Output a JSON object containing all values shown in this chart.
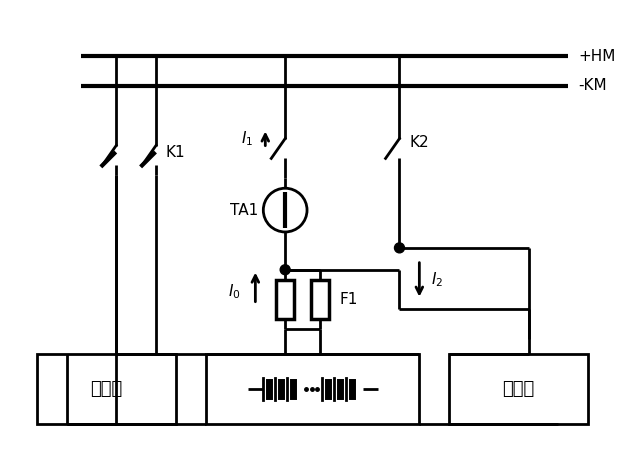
{
  "background_color": "#ffffff",
  "line_color": "#000000",
  "lw": 2.0,
  "lw_bus": 3.0,
  "bus_plus_label": "+HM",
  "bus_minus_label": "-KM",
  "label_K1": "K1",
  "label_K2": "K2",
  "label_TA1": "TA1",
  "label_F1": "F1",
  "label_I0": "$I_0$",
  "label_I1": "$I_1$",
  "label_I2": "$I_2$",
  "label_charger": "充电机",
  "label_discharger": "放电仪"
}
